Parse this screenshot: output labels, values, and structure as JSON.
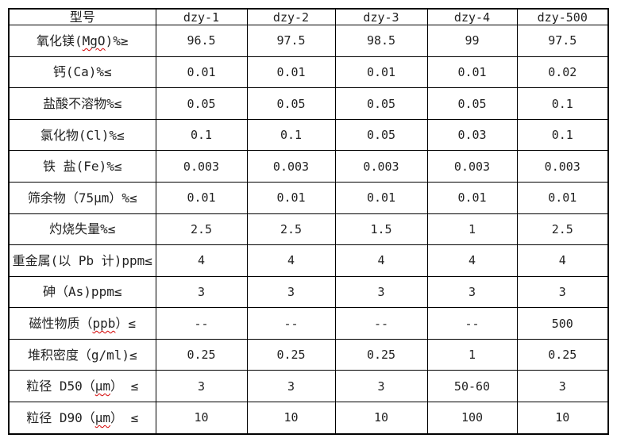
{
  "colors": {
    "border": "#000000",
    "text": "#222222",
    "squiggle": "#d40000",
    "background": "#ffffff"
  },
  "table": {
    "header": [
      "型号",
      "dzy-1",
      "dzy-2",
      "dzy-3",
      "dzy-4",
      "dzy-500"
    ],
    "rows": [
      {
        "label": [
          {
            "t": "氧化镁("
          },
          {
            "t": "MgO",
            "u": true
          },
          {
            "t": ")%≥"
          }
        ],
        "values": [
          "96.5",
          "97.5",
          "98.5",
          "99",
          "97.5"
        ]
      },
      {
        "label": [
          {
            "t": "钙(Ca)%≤"
          }
        ],
        "values": [
          "0.01",
          "0.01",
          "0.01",
          "0.01",
          "0.02"
        ]
      },
      {
        "label": [
          {
            "t": "盐酸不溶物%≤"
          }
        ],
        "values": [
          "0.05",
          "0.05",
          "0.05",
          "0.05",
          "0.1"
        ]
      },
      {
        "label": [
          {
            "t": "氯化物(Cl)%≤"
          }
        ],
        "values": [
          "0.1",
          "0.1",
          "0.05",
          "0.03",
          "0.1"
        ]
      },
      {
        "label": [
          {
            "t": "铁 盐(Fe)%≤"
          }
        ],
        "values": [
          "0.003",
          "0.003",
          "0.003",
          "0.003",
          "0.003"
        ]
      },
      {
        "label": [
          {
            "t": "筛余物（75μm）%≤"
          }
        ],
        "values": [
          "0.01",
          "0.01",
          "0.01",
          "0.01",
          "0.01"
        ]
      },
      {
        "label": [
          {
            "t": "灼烧失量%≤"
          }
        ],
        "values": [
          "2.5",
          "2.5",
          "1.5",
          "1",
          "2.5"
        ]
      },
      {
        "label": [
          {
            "t": "重金属(以 Pb 计)ppm≤"
          }
        ],
        "values": [
          "4",
          "4",
          "4",
          "4",
          "4"
        ]
      },
      {
        "label": [
          {
            "t": "砷（As)ppm≤"
          }
        ],
        "values": [
          "3",
          "3",
          "3",
          "3",
          "3"
        ]
      },
      {
        "label": [
          {
            "t": "磁性物质（"
          },
          {
            "t": "ppb",
            "u": true
          },
          {
            "t": "）≤"
          }
        ],
        "values": [
          "--",
          "--",
          "--",
          "--",
          "500"
        ]
      },
      {
        "label": [
          {
            "t": "堆积密度（g/ml)≤"
          }
        ],
        "values": [
          "0.25",
          "0.25",
          "0.25",
          "1",
          "0.25"
        ]
      },
      {
        "label": [
          {
            "t": "粒径 D50（"
          },
          {
            "t": "μm",
            "u": true
          },
          {
            "t": "） ≤"
          }
        ],
        "values": [
          "3",
          "3",
          "3",
          "50-60",
          "3"
        ]
      },
      {
        "label": [
          {
            "t": "粒径 D90（"
          },
          {
            "t": "μm",
            "u": true
          },
          {
            "t": "） ≤"
          }
        ],
        "values": [
          "10",
          "10",
          "10",
          "100",
          "10"
        ]
      }
    ]
  }
}
